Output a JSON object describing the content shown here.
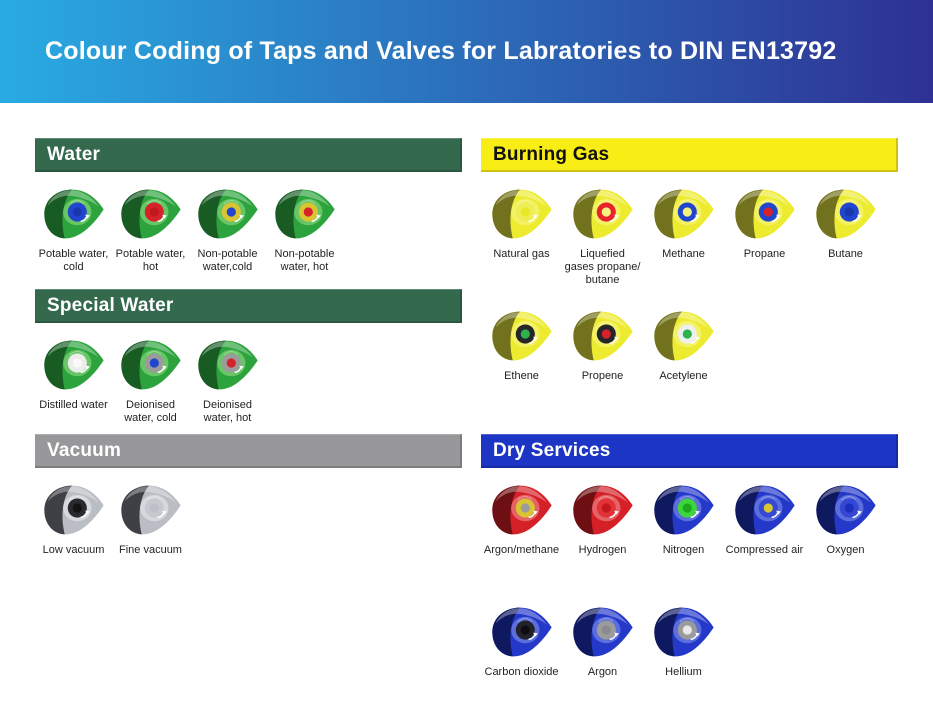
{
  "title": "Colour Coding of Taps and Valves for Labratories to DIN EN13792",
  "banner": {
    "gradient_left": "#29ABE2",
    "gradient_right": "#2E3192",
    "text_color": "#FFFFFF"
  },
  "label_color": "#231F20",
  "body_colors": {
    "green": {
      "main": "#2CA33C",
      "dark": "#185C24",
      "light": "#9BE48A"
    },
    "yellow": {
      "main": "#EDEB2F",
      "dark": "#72711D",
      "light": "#F8F690"
    },
    "gray": {
      "main": "#BABDC3",
      "dark": "#3E4046",
      "light": "#ECEEF2"
    },
    "red": {
      "main": "#D52027",
      "dark": "#6E0F13",
      "light": "#F29A9A"
    },
    "blue": {
      "main": "#2438CA",
      "dark": "#0F1960",
      "light": "#8A9BEC"
    }
  },
  "sections": [
    {
      "id": "water",
      "title": "Water",
      "header_bg": "#35694E",
      "header_fg": "#FFFFFF",
      "rows": [
        [
          {
            "label": "Potable water,\ncold",
            "body": "green",
            "ring": "#2145CE",
            "center": "#1A37AE"
          },
          {
            "label": "Potable water,\nhot",
            "body": "green",
            "ring": "#D6222A",
            "center": "#C2191F"
          },
          {
            "label": "Non-potable\nwater,cold",
            "body": "green",
            "ring": "#D9C431",
            "center": "#2145CE"
          },
          {
            "label": "Non-potable\nwater, hot",
            "body": "green",
            "ring": "#D9C431",
            "center": "#D6222A"
          }
        ]
      ]
    },
    {
      "id": "special-water",
      "title": "Special Water",
      "header_bg": "#35694E",
      "header_fg": "#FFFFFF",
      "rows": [
        [
          {
            "label": "Distilled water",
            "body": "green",
            "ring": "#ECECEC",
            "center": "#FAFAFA"
          },
          {
            "label": "Deionised\nwater, cold",
            "body": "green",
            "ring": "#9B9B9B",
            "center": "#2145CE"
          },
          {
            "label": "Deionised\nwater, hot",
            "body": "green",
            "ring": "#9B9B9B",
            "center": "#D6222A"
          }
        ]
      ]
    },
    {
      "id": "vacuum",
      "title": "Vacuum",
      "header_bg": "#98989A",
      "header_fg": "#FFFFFF",
      "rows": [
        [
          {
            "label": "Low vacuum",
            "body": "gray",
            "ring": "#2A2A2E",
            "center": "#141416"
          },
          {
            "label": "Fine vacuum",
            "body": "gray",
            "ring": "#C6C9CF",
            "center": "#BDC0C6"
          }
        ]
      ]
    },
    {
      "id": "burning-gas",
      "title": "Burning Gas",
      "header_bg": "#F9ED16",
      "header_fg": "#111111",
      "rows": [
        [
          {
            "label": "Natural gas",
            "body": "yellow",
            "ring": "#EFED55",
            "center": "#E9E727"
          },
          {
            "label": "Liquefied\ngases propane/\nbutane",
            "body": "yellow",
            "ring": "#E8232B",
            "center": "#F3F180"
          },
          {
            "label": "Methane",
            "body": "yellow",
            "ring": "#2145CE",
            "center": "#F3F180"
          },
          {
            "label": "Propane",
            "body": "yellow",
            "ring": "#2145CE",
            "center": "#D6222A"
          },
          {
            "label": "Butane",
            "body": "yellow",
            "ring": "#2145CE",
            "center": "#1A37AE"
          }
        ],
        [
          {
            "label": "Ethene",
            "body": "yellow",
            "ring": "#26262A",
            "center": "#2BB24C"
          },
          {
            "label": "Propene",
            "body": "yellow",
            "ring": "#26262A",
            "center": "#D6222A"
          },
          {
            "label": "Acetylene",
            "body": "yellow",
            "ring": "#EFEFEF",
            "center": "#2BB24C"
          }
        ]
      ]
    },
    {
      "id": "dry-services",
      "title": "Dry Services",
      "header_bg": "#1C35C4",
      "header_fg": "#FFFFFF",
      "rows": [
        [
          {
            "label": "Argon/methane",
            "body": "red",
            "ring": "#D9C431",
            "center": "#9B9BA0"
          },
          {
            "label": "Hydrogen",
            "body": "red",
            "ring": "#E23238",
            "center": "#C2191F"
          },
          {
            "label": "Nitrogen",
            "body": "blue",
            "ring": "#3ED43E",
            "center": "#1CA81C"
          },
          {
            "label": "Compressed air",
            "body": "blue",
            "ring": "#3448D4",
            "center": "#D9C431"
          },
          {
            "label": "Oxygen",
            "body": "blue",
            "ring": "#3448D4",
            "center": "#1C30BC"
          }
        ],
        [
          {
            "label": "Carbon dioxide",
            "body": "blue",
            "ring": "#222228",
            "center": "#0E0E12"
          },
          {
            "label": "Argon",
            "body": "blue",
            "ring": "#9B9B9B",
            "center": "#8A8A90"
          },
          {
            "label": "Hellium",
            "body": "blue",
            "ring": "#9B9B9B",
            "center": "#E8E8E8"
          }
        ]
      ]
    }
  ]
}
